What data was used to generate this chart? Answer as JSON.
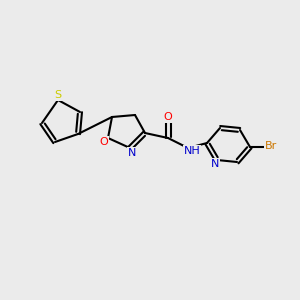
{
  "background_color": "#ebebeb",
  "bond_color": "#000000",
  "bond_lw": 1.5,
  "atom_colors": {
    "N": "#0000cc",
    "O": "#ff0000",
    "S": "#cccc00",
    "Br": "#cc7700",
    "C": "#000000",
    "H": "#000000"
  },
  "font_size": 7.5
}
